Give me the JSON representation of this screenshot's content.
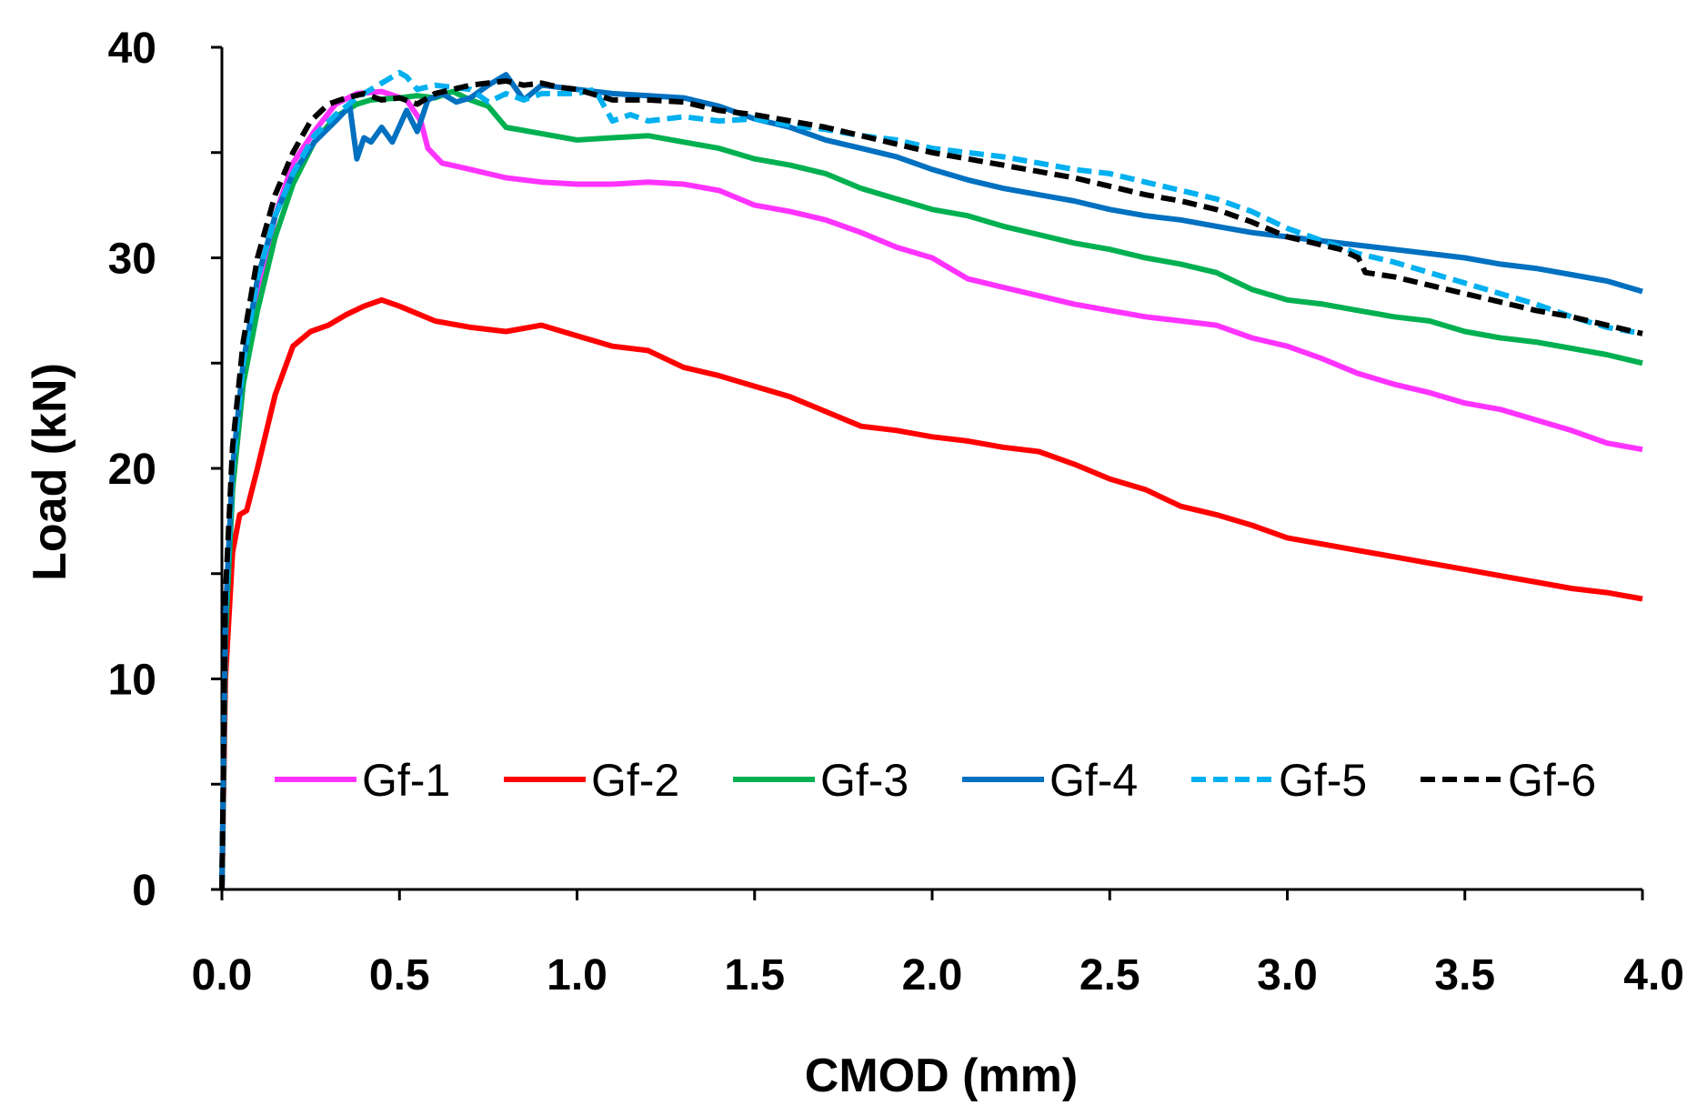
{
  "chart_data": {
    "type": "line",
    "xlabel": "CMOD (mm)",
    "ylabel": "Load (kN)",
    "xlim": [
      0,
      4
    ],
    "ylim": [
      0,
      40
    ],
    "x_ticks": [
      0.0,
      0.5,
      1.0,
      1.5,
      2.0,
      2.5,
      3.0,
      3.5,
      4.0
    ],
    "x_tick_labels": [
      "0.0",
      "0.5",
      "1.0",
      "1.5",
      "2.0",
      "2.5",
      "3.0",
      "3.5",
      "4.0"
    ],
    "y_ticks": [
      0,
      10,
      20,
      30,
      40
    ],
    "y_tick_labels": [
      "0",
      "10",
      "20",
      "30",
      "40"
    ],
    "y_minor_ticks": [
      5,
      15,
      25,
      35
    ],
    "grid": false,
    "legend_position": "bottom-center inside",
    "series": [
      {
        "name": "Gf-1",
        "color": "#ff33ff",
        "dash": "solid",
        "x": [
          0,
          0.01,
          0.03,
          0.06,
          0.1,
          0.15,
          0.2,
          0.26,
          0.32,
          0.38,
          0.45,
          0.52,
          0.56,
          0.58,
          0.62,
          0.7,
          0.8,
          0.9,
          1.0,
          1.1,
          1.2,
          1.3,
          1.4,
          1.5,
          1.6,
          1.7,
          1.8,
          1.9,
          2.0,
          2.1,
          2.2,
          2.3,
          2.4,
          2.5,
          2.6,
          2.7,
          2.8,
          2.9,
          3.0,
          3.1,
          3.2,
          3.3,
          3.4,
          3.5,
          3.6,
          3.7,
          3.8,
          3.9,
          4.0
        ],
        "y": [
          0,
          12,
          19,
          24,
          28,
          32,
          34.5,
          36,
          37.3,
          37.8,
          37.9,
          37.5,
          36.5,
          35.2,
          34.5,
          34.2,
          33.8,
          33.6,
          33.5,
          33.5,
          33.6,
          33.5,
          33.2,
          32.5,
          32.2,
          31.8,
          31.2,
          30.5,
          30.0,
          29.0,
          28.6,
          28.2,
          27.8,
          27.5,
          27.2,
          27.0,
          26.8,
          26.2,
          25.8,
          25.2,
          24.5,
          24.0,
          23.6,
          23.1,
          22.8,
          22.3,
          21.8,
          21.2,
          20.9
        ]
      },
      {
        "name": "Gf-2",
        "color": "#ff0000",
        "dash": "solid",
        "x": [
          0,
          0.01,
          0.03,
          0.05,
          0.07,
          0.1,
          0.15,
          0.2,
          0.25,
          0.3,
          0.35,
          0.4,
          0.45,
          0.5,
          0.6,
          0.7,
          0.8,
          0.9,
          1.0,
          1.1,
          1.2,
          1.3,
          1.4,
          1.5,
          1.6,
          1.7,
          1.8,
          1.9,
          2.0,
          2.1,
          2.2,
          2.3,
          2.4,
          2.5,
          2.6,
          2.7,
          2.8,
          2.9,
          3.0,
          3.1,
          3.2,
          3.3,
          3.4,
          3.5,
          3.6,
          3.7,
          3.8,
          3.9,
          4.0
        ],
        "y": [
          0,
          10,
          16,
          17.8,
          18,
          20,
          23.5,
          25.8,
          26.5,
          26.8,
          27.3,
          27.7,
          28.0,
          27.7,
          27.0,
          26.7,
          26.5,
          26.8,
          26.3,
          25.8,
          25.6,
          24.8,
          24.4,
          23.9,
          23.4,
          22.7,
          22.0,
          21.8,
          21.5,
          21.3,
          21.0,
          20.8,
          20.2,
          19.5,
          19.0,
          18.2,
          17.8,
          17.3,
          16.7,
          16.4,
          16.1,
          15.8,
          15.5,
          15.2,
          14.9,
          14.6,
          14.3,
          14.1,
          13.8
        ]
      },
      {
        "name": "Gf-3",
        "color": "#00b050",
        "dash": "solid",
        "x": [
          0,
          0.01,
          0.03,
          0.06,
          0.1,
          0.15,
          0.2,
          0.26,
          0.32,
          0.38,
          0.42,
          0.5,
          0.55,
          0.6,
          0.65,
          0.7,
          0.75,
          0.8,
          0.9,
          1.0,
          1.1,
          1.2,
          1.3,
          1.4,
          1.5,
          1.6,
          1.7,
          1.8,
          1.9,
          2.0,
          2.1,
          2.2,
          2.3,
          2.4,
          2.5,
          2.6,
          2.7,
          2.8,
          2.9,
          3.0,
          3.1,
          3.2,
          3.3,
          3.4,
          3.5,
          3.6,
          3.7,
          3.8,
          3.9,
          4.0
        ],
        "y": [
          0,
          12,
          19,
          24,
          27.5,
          31,
          33.5,
          35.5,
          36.7,
          37.3,
          37.5,
          37.6,
          37.7,
          37.6,
          37.9,
          37.5,
          37.2,
          36.2,
          35.9,
          35.6,
          35.7,
          35.8,
          35.5,
          35.2,
          34.7,
          34.4,
          34.0,
          33.3,
          32.8,
          32.3,
          32.0,
          31.5,
          31.1,
          30.7,
          30.4,
          30.0,
          29.7,
          29.3,
          28.5,
          28.0,
          27.8,
          27.5,
          27.2,
          27.0,
          26.5,
          26.2,
          26.0,
          25.7,
          25.4,
          25.0
        ]
      },
      {
        "name": "Gf-4",
        "color": "#0070c0",
        "dash": "solid",
        "x": [
          0,
          0.01,
          0.03,
          0.06,
          0.1,
          0.15,
          0.2,
          0.26,
          0.32,
          0.36,
          0.38,
          0.4,
          0.42,
          0.45,
          0.48,
          0.52,
          0.55,
          0.58,
          0.62,
          0.66,
          0.7,
          0.75,
          0.8,
          0.85,
          0.9,
          1.0,
          1.1,
          1.2,
          1.3,
          1.4,
          1.5,
          1.6,
          1.7,
          1.8,
          1.9,
          2.0,
          2.1,
          2.2,
          2.3,
          2.4,
          2.5,
          2.6,
          2.7,
          2.8,
          2.9,
          3.0,
          3.1,
          3.2,
          3.3,
          3.4,
          3.5,
          3.6,
          3.7,
          3.8,
          3.9,
          4.0
        ],
        "y": [
          0,
          13,
          20,
          25,
          29,
          32,
          34,
          35.5,
          36.5,
          37.2,
          34.7,
          35.7,
          35.5,
          36.2,
          35.5,
          37.0,
          36.0,
          37.5,
          37.8,
          37.4,
          37.6,
          38.2,
          38.7,
          37.5,
          38.2,
          38.0,
          37.8,
          37.7,
          37.6,
          37.2,
          36.6,
          36.2,
          35.6,
          35.2,
          34.8,
          34.2,
          33.7,
          33.3,
          33.0,
          32.7,
          32.3,
          32.0,
          31.8,
          31.5,
          31.2,
          31.0,
          30.8,
          30.6,
          30.4,
          30.2,
          30.0,
          29.7,
          29.5,
          29.2,
          28.9,
          28.4
        ]
      },
      {
        "name": "Gf-5",
        "color": "#00b0f0",
        "dash": "dashed",
        "x": [
          0,
          0.01,
          0.03,
          0.06,
          0.1,
          0.15,
          0.2,
          0.26,
          0.32,
          0.38,
          0.44,
          0.5,
          0.52,
          0.55,
          0.6,
          0.7,
          0.75,
          0.8,
          0.85,
          0.9,
          1.0,
          1.05,
          1.1,
          1.15,
          1.2,
          1.3,
          1.4,
          1.5,
          1.6,
          1.7,
          1.8,
          1.9,
          2.0,
          2.1,
          2.2,
          2.3,
          2.4,
          2.5,
          2.6,
          2.7,
          2.8,
          2.9,
          3.0,
          3.1,
          3.2,
          3.3,
          3.4,
          3.5,
          3.6,
          3.7,
          3.8,
          3.9,
          4.0
        ],
        "y": [
          0,
          13,
          20,
          25,
          29,
          32,
          34,
          35.8,
          36.8,
          37.6,
          38.2,
          38.8,
          38.6,
          38.0,
          38.2,
          38.0,
          37.4,
          37.8,
          37.5,
          37.8,
          37.8,
          38.0,
          36.5,
          36.8,
          36.5,
          36.7,
          36.5,
          36.6,
          36.3,
          36.1,
          35.8,
          35.6,
          35.2,
          35.0,
          34.8,
          34.5,
          34.2,
          34.0,
          33.6,
          33.2,
          32.8,
          32.2,
          31.4,
          30.8,
          30.2,
          29.8,
          29.3,
          28.8,
          28.3,
          27.8,
          27.2,
          26.7,
          26.4
        ]
      },
      {
        "name": "Gf-6",
        "color": "#000000",
        "dash": "dashed",
        "x": [
          0,
          0.01,
          0.03,
          0.06,
          0.1,
          0.15,
          0.2,
          0.25,
          0.3,
          0.35,
          0.4,
          0.45,
          0.5,
          0.55,
          0.6,
          0.7,
          0.8,
          0.85,
          0.9,
          0.95,
          1.0,
          1.1,
          1.2,
          1.3,
          1.4,
          1.5,
          1.6,
          1.7,
          1.8,
          1.9,
          2.0,
          2.1,
          2.2,
          2.3,
          2.4,
          2.5,
          2.6,
          2.7,
          2.8,
          2.9,
          3.0,
          3.1,
          3.15,
          3.2,
          3.22,
          3.3,
          3.4,
          3.5,
          3.6,
          3.7,
          3.8,
          3.9,
          4.0
        ],
        "y": [
          0,
          14,
          21,
          26,
          30,
          33,
          35,
          36.5,
          37.3,
          37.6,
          37.8,
          37.5,
          37.6,
          37.3,
          37.8,
          38.2,
          38.4,
          38.2,
          38.3,
          38.1,
          38.0,
          37.5,
          37.5,
          37.4,
          37.0,
          36.8,
          36.5,
          36.2,
          35.8,
          35.4,
          35.0,
          34.7,
          34.4,
          34.1,
          33.8,
          33.4,
          33.0,
          32.7,
          32.3,
          31.7,
          31.0,
          30.6,
          30.4,
          30.0,
          29.3,
          29.1,
          28.7,
          28.3,
          27.9,
          27.5,
          27.2,
          26.8,
          26.4
        ]
      }
    ]
  }
}
